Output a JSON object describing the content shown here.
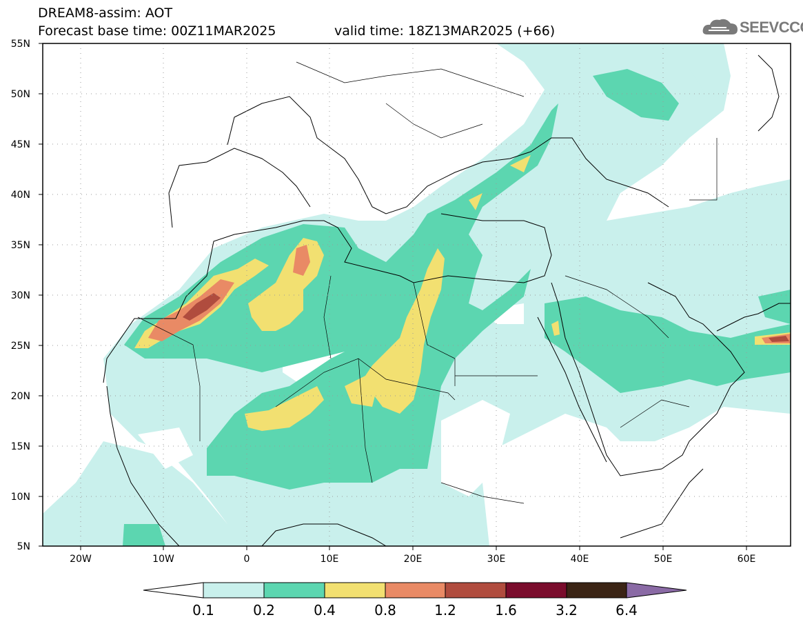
{
  "header": {
    "title_line1": "DREAM8-assim: AOT",
    "title_line2_base": "Forecast base time: 00Z11MAR2025",
    "title_line2_valid": "valid time: 18Z13MAR2025 (+66)"
  },
  "logo": {
    "text": "SEEVCCC",
    "icon": "cloud-icon"
  },
  "map": {
    "lon_range": [
      -25,
      65
    ],
    "lat_range": [
      5,
      55
    ],
    "lat_labels": [
      "55N",
      "50N",
      "45N",
      "40N",
      "35N",
      "30N",
      "25N",
      "20N",
      "15N",
      "10N",
      "5N"
    ],
    "lon_labels": [
      "20W",
      "10W",
      "0",
      "10E",
      "20E",
      "30E",
      "40E",
      "50E",
      "60E"
    ],
    "gridlines": "dotted"
  },
  "legend": {
    "labels": [
      "0.1",
      "0.2",
      "0.4",
      "0.8",
      "1.2",
      "1.6",
      "3.2",
      "6.4"
    ],
    "colors": [
      "#ffffff",
      "#c9f0ec",
      "#5cd6b0",
      "#f2e071",
      "#e98a65",
      "#b04c3e",
      "#7a0c2c",
      "#3b2415",
      "#8a6aa5"
    ]
  }
}
